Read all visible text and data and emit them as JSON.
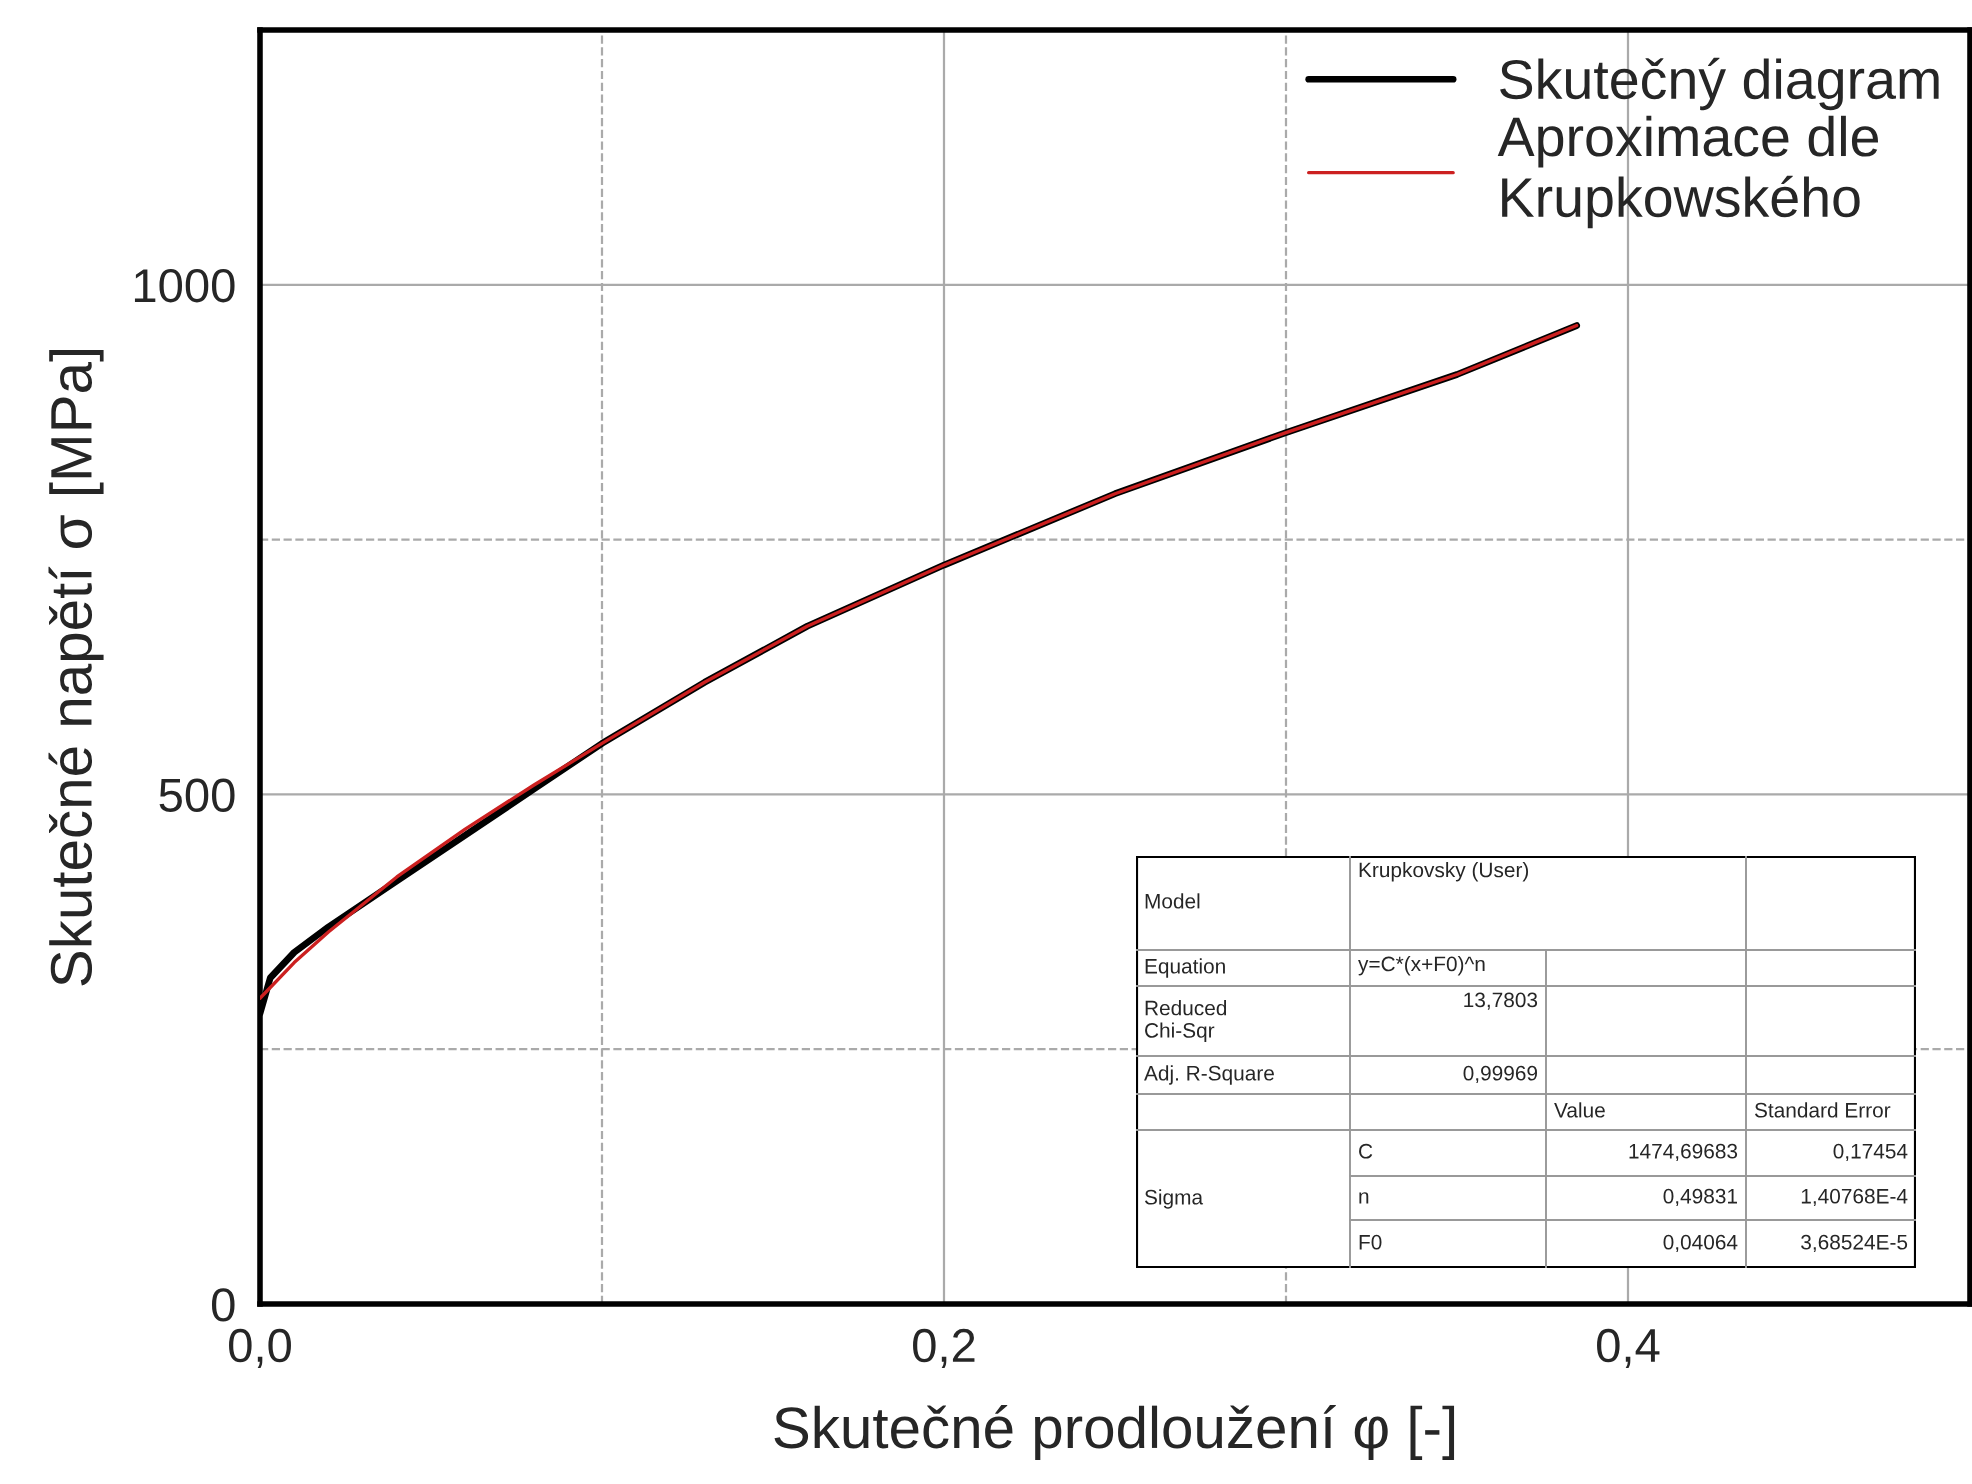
{
  "chart_data": {
    "type": "line",
    "xlabel": "Skutečné prodloužení φ [-]",
    "ylabel": "Skutečné napětí σ [MPa]",
    "xlim": [
      0,
      0.5
    ],
    "xticks": [
      {
        "value": 0,
        "label": "0,0"
      },
      {
        "value": 0.2,
        "label": "0,2"
      },
      {
        "value": 0.4,
        "label": "0,4"
      }
    ],
    "ylim": [
      0,
      1250
    ],
    "yticks": [
      0,
      500,
      1000
    ],
    "grid": true,
    "legend": "top right",
    "marker": "none",
    "line_style": "solid",
    "series": [
      {
        "name": "Skutečný diagram",
        "color": "#000000",
        "x": [
          0,
          0.003,
          0.01,
          0.02,
          0.04,
          0.06,
          0.08,
          0.1,
          0.13,
          0.16,
          0.2,
          0.25,
          0.3,
          0.35,
          0.385
        ],
        "values": [
          285,
          320,
          345,
          370,
          415,
          460,
          505,
          550,
          610,
          665,
          725,
          795,
          855,
          912,
          960
        ]
      },
      {
        "name": "Aproximace dle\nKrupkowského",
        "color": "#cc2020",
        "x": [
          0,
          0.01,
          0.02,
          0.04,
          0.06,
          0.08,
          0.1,
          0.13,
          0.16,
          0.2,
          0.25,
          0.3,
          0.35,
          0.385
        ],
        "values": [
          300,
          335,
          365,
          419,
          466,
          509,
          550,
          610,
          665,
          725,
          795,
          855,
          912,
          960
        ]
      }
    ],
    "annotations": [
      "Model",
      "Krupkovsky (User)",
      "Equation",
      "y=C*(x+F0)^n",
      "Reduced\nChi-Sqr",
      "13,7803",
      "Adj. R-Square",
      "0,99969",
      "Value",
      "Standard Error",
      "Sigma",
      "C",
      "1474,69683",
      "0,17454",
      "n",
      "0,49831",
      "1,40768E-4",
      "F0",
      "0,04064",
      "3,68524E-5"
    ]
  }
}
